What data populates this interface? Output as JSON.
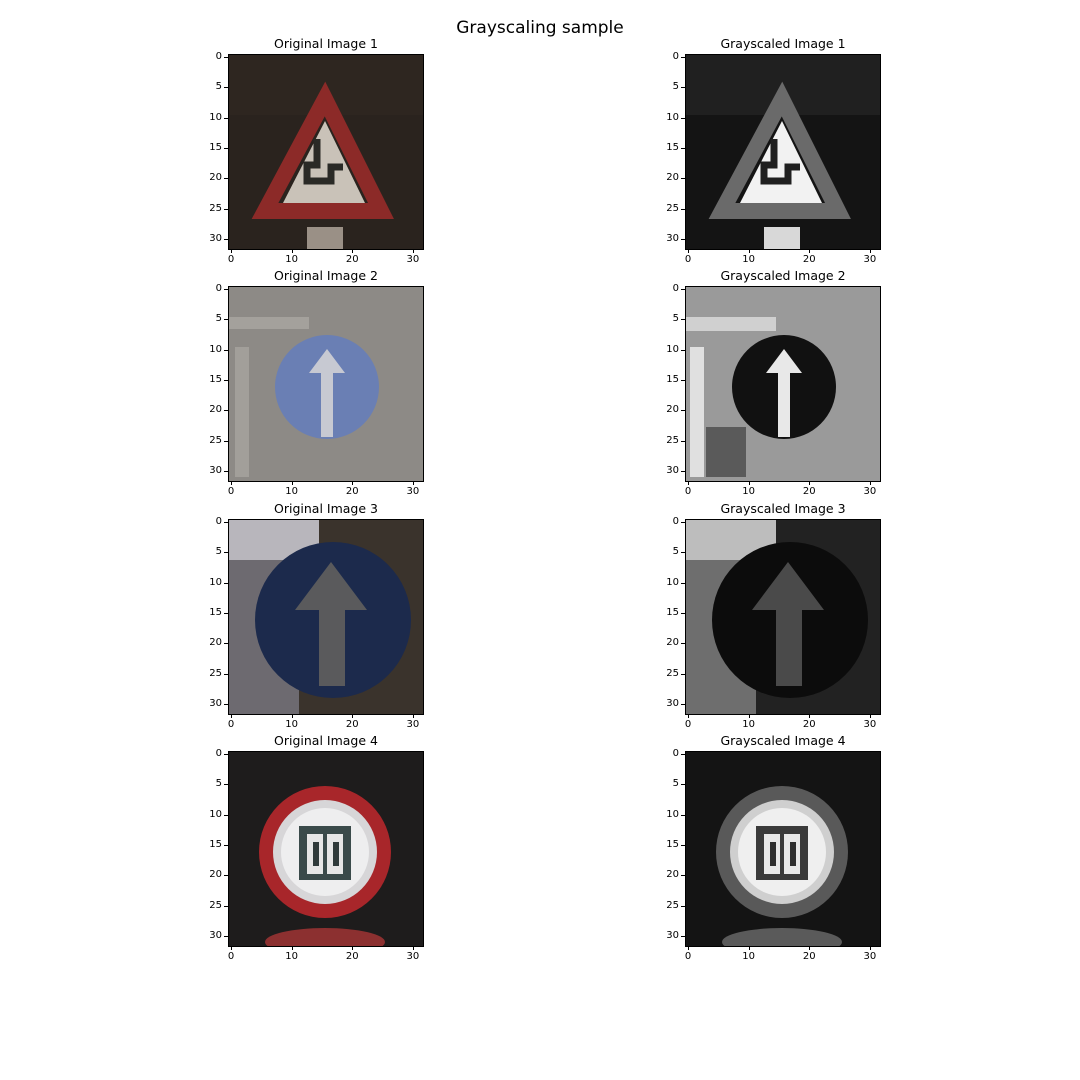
{
  "figure": {
    "title": "Grayscaling sample"
  },
  "axis": {
    "ticks": [
      "0",
      "10",
      "20",
      "30"
    ],
    "yticks": [
      "0",
      "5",
      "10",
      "15",
      "20",
      "25",
      "30"
    ]
  },
  "panels": [
    {
      "title": "Original Image 1",
      "content": "triangle-curve-sign",
      "mode": "color"
    },
    {
      "title": "Grayscaled Image 1",
      "content": "triangle-curve-sign",
      "mode": "gray"
    },
    {
      "title": "Original Image 2",
      "content": "round-ahead-sign-light",
      "mode": "color"
    },
    {
      "title": "Grayscaled Image 2",
      "content": "round-ahead-sign-light",
      "mode": "gray"
    },
    {
      "title": "Original Image 3",
      "content": "round-ahead-sign-dark",
      "mode": "color"
    },
    {
      "title": "Grayscaled Image 3",
      "content": "round-ahead-sign-dark",
      "mode": "gray"
    },
    {
      "title": "Original Image 4",
      "content": "speed-limit-20-sign",
      "mode": "color"
    },
    {
      "title": "Grayscaled Image 4",
      "content": "speed-limit-20-sign",
      "mode": "gray"
    }
  ],
  "colors": {
    "background": "#ffffff",
    "sign_red": "#8c2a28",
    "sign_blue_light": "#6a7fb4",
    "sign_blue_dark": "#1c2a4c",
    "speed_red": "#a8262a"
  }
}
